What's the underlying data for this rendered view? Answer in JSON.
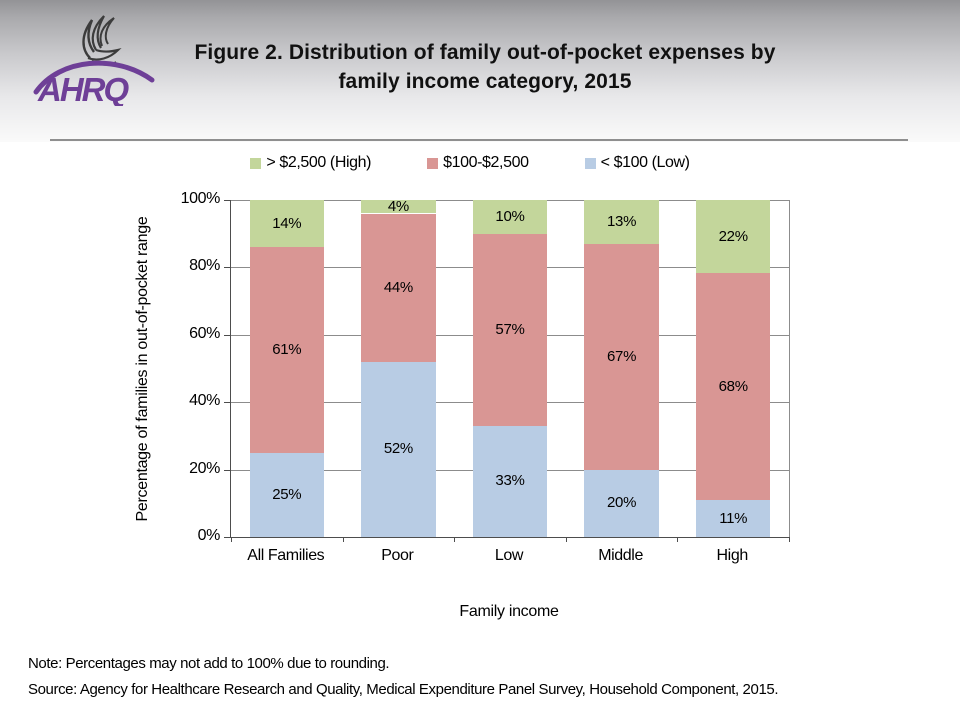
{
  "header": {
    "title_line1": "Figure 2. Distribution of family out-of-pocket expenses by",
    "title_line2": "family income category, 2015",
    "logo_text": "AHRQ"
  },
  "colors": {
    "series_low_blue": "#b8cce4",
    "series_mid_red": "#d99694",
    "series_high_green": "#c3d69b",
    "logo_purple": "#6e3f97",
    "eagle_gray": "#3c3c3c"
  },
  "chart_data": {
    "type": "bar",
    "stacked": true,
    "stacked_100_percent": true,
    "title": "Figure 2. Distribution of family out-of-pocket expenses by family income category, 2015",
    "categories": [
      "All Families",
      "Poor",
      "Low",
      "Middle",
      "High"
    ],
    "series": [
      {
        "name": "< $100 (Low)",
        "color": "#b8cce4",
        "values": [
          25,
          52,
          33,
          20,
          11
        ]
      },
      {
        "name": "$100-$2,500",
        "color": "#d99694",
        "values": [
          61,
          44,
          57,
          67,
          68
        ]
      },
      {
        "name": "> $2,500 (High)",
        "color": "#c3d69b",
        "values": [
          14,
          4,
          10,
          13,
          22
        ]
      }
    ],
    "data_label_format": "percent",
    "xlabel": "Family income",
    "ylabel": "Percentage of families in out-of-pocket range",
    "y_ticks": [
      "0%",
      "20%",
      "40%",
      "60%",
      "80%",
      "100%"
    ],
    "ylim": [
      0,
      100
    ],
    "grid": true,
    "legend_position": "top",
    "legend_order": [
      "> $2,500 (High)",
      "$100-$2,500",
      "< $100 (Low)"
    ]
  },
  "footer": {
    "note": "Note: Percentages may not add to 100% due to rounding.",
    "source": "Source: Agency for Healthcare Research and Quality, Medical Expenditure Panel Survey, Household Component, 2015."
  }
}
